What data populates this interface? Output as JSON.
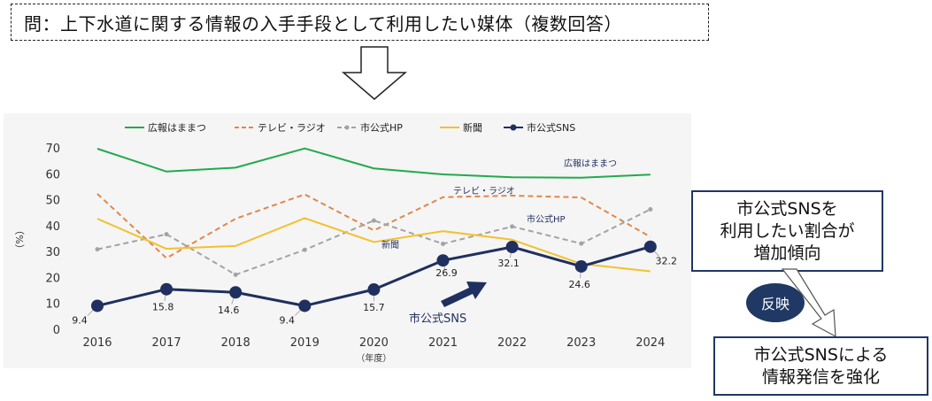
{
  "question": "問：上下水道に関する情報の入手手段として利用したい媒体（複数回答）",
  "callout": "市公式SNSを\n利用したい割合が\n増加傾向",
  "reflect": "反映",
  "result": "市公式SNSによる\n情報発信を強化",
  "chart_data": {
    "type": "line",
    "x": [
      "2016",
      "2017",
      "2018",
      "2019",
      "2020",
      "2021",
      "2022",
      "2023",
      "2024"
    ],
    "xlabel": "（年度）",
    "ylabel": "（%）",
    "ylim": [
      0,
      70
    ],
    "yticks": [
      0,
      10,
      20,
      30,
      40,
      50,
      60,
      70
    ],
    "legend_position": "top",
    "series": [
      {
        "name": "広報はままつ",
        "color": "#22aa4c",
        "dash": "solid",
        "marker": "none",
        "values": [
          70.0,
          61.2,
          62.7,
          70.1,
          62.4,
          60.1,
          59.0,
          58.8,
          60.0
        ]
      },
      {
        "name": "テレビ・ラジオ",
        "color": "#e0874b",
        "dash": "dashed",
        "marker": "none",
        "values": [
          52.6,
          27.8,
          43.0,
          52.4,
          38.5,
          51.3,
          51.9,
          51.2,
          36.0
        ]
      },
      {
        "name": "市公式HP",
        "color": "#a3a3a3",
        "dash": "dashed",
        "marker": "circle-small",
        "values": [
          31.2,
          37.0,
          21.4,
          31.0,
          42.3,
          33.3,
          40.0,
          33.4,
          46.6
        ]
      },
      {
        "name": "新聞",
        "color": "#f2c12e",
        "dash": "solid",
        "marker": "none",
        "values": [
          43.0,
          31.4,
          32.5,
          43.2,
          34.0,
          38.2,
          34.9,
          25.6,
          22.7
        ]
      },
      {
        "name": "市公式SNS",
        "color": "#1f2f5f",
        "dash": "solid",
        "marker": "circle",
        "values": [
          9.4,
          15.8,
          14.6,
          9.4,
          15.7,
          26.9,
          32.1,
          24.6,
          32.2
        ],
        "labels": [
          "9.4",
          "15.8",
          "14.6",
          "9.4",
          "15.7",
          "26.9",
          "32.1",
          "24.6",
          "32.2"
        ]
      }
    ],
    "annotations": [
      "広報はままつ",
      "テレビ・ラジオ",
      "市公式HP",
      "新聞",
      "市公式SNS"
    ]
  }
}
